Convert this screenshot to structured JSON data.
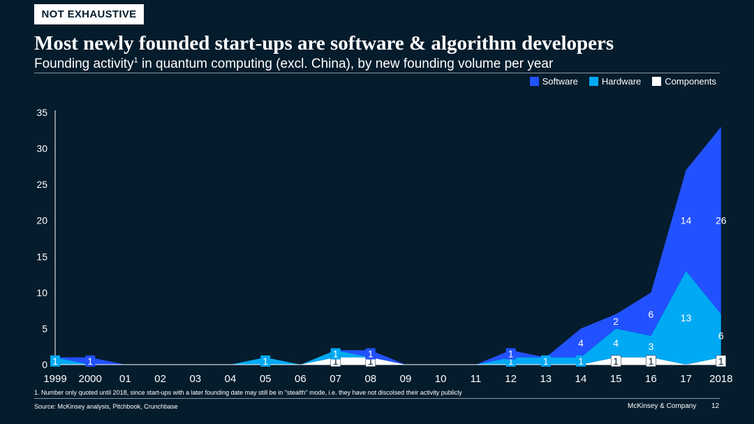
{
  "badge": "NOT EXHAUSTIVE",
  "title": "Most newly founded start-ups are software & algorithm developers",
  "subtitle": {
    "text_before": "Founding activity",
    "sup": "1",
    "text_after": " in quantum computing (excl. China), by new founding volume per year"
  },
  "footnote": "1.   Number only quoted until 2018, since start-ups with a later founding date may still be in \"stealth\" mode, i.e. they have not discolsed their activity publicly",
  "source": "Source: McKinsey analysis, Pitchbook, Crunchbase",
  "company": "McKinsey & Company",
  "page_number": "12",
  "colors": {
    "background": "#051c2c",
    "software": "#2251ff",
    "hardware": "#00a9f4",
    "components": "#ffffff"
  },
  "chart_data": {
    "type": "area",
    "stacked": true,
    "x": [
      "1999",
      "2000",
      "01",
      "02",
      "03",
      "04",
      "05",
      "06",
      "07",
      "08",
      "09",
      "10",
      "11",
      "12",
      "13",
      "14",
      "15",
      "16",
      "17",
      "2018"
    ],
    "yticks": [
      "0",
      "5",
      "10",
      "15",
      "20",
      "25",
      "30",
      "35"
    ],
    "ylim": [
      0,
      35
    ],
    "legend_position": "top-right",
    "grid": false,
    "series": [
      {
        "name": "Components",
        "color": "#ffffff",
        "values": [
          0,
          0,
          0,
          0,
          0,
          0,
          0,
          0,
          1,
          1,
          0,
          0,
          0,
          0,
          0,
          0,
          1,
          1,
          0,
          1
        ]
      },
      {
        "name": "Hardware",
        "color": "#00a9f4",
        "values": [
          1,
          0,
          0,
          0,
          0,
          0,
          1,
          0,
          1,
          0,
          0,
          0,
          0,
          1,
          1,
          1,
          4,
          3,
          13,
          6
        ]
      },
      {
        "name": "Software",
        "color": "#2251ff",
        "values": [
          0,
          1,
          0,
          0,
          0,
          0,
          0,
          0,
          0,
          1,
          0,
          0,
          0,
          1,
          0,
          4,
          2,
          6,
          14,
          26
        ]
      }
    ],
    "legend": [
      "Software",
      "Hardware",
      "Components"
    ]
  }
}
